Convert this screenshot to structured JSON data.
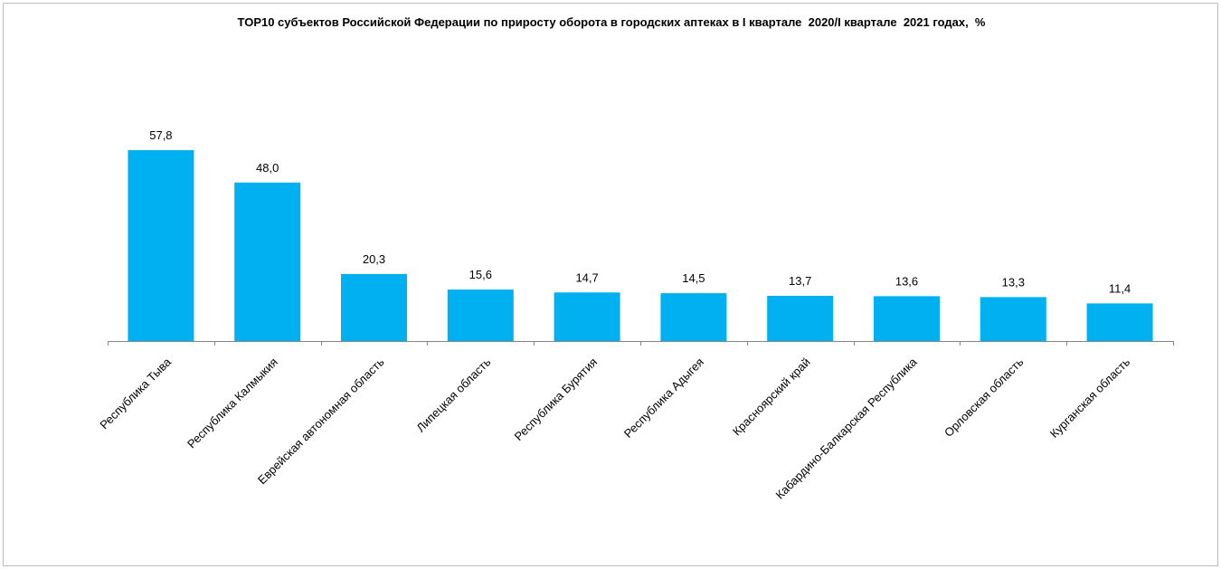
{
  "chart_data": {
    "type": "bar",
    "title": "TOP10 субъектов Российской Федерации по приросту оборота в городских аптеках в I квартале  2020/I квартале  2021 годах,  %",
    "xlabel": "",
    "ylabel": "",
    "categories": [
      "Республика Тыва",
      "Республика Калмыкия",
      "Еврейская автономная область",
      "Липецкая область",
      "Республика Бурятия",
      "Республика Адыгея",
      "Красноярский край",
      "Кабардино-Балкарская Республика",
      "Орловская область",
      "Курганская область"
    ],
    "values": [
      57.8,
      48.0,
      20.3,
      15.6,
      14.7,
      14.5,
      13.7,
      13.6,
      13.3,
      11.4
    ],
    "value_labels": [
      "57,8",
      "48,0",
      "20,3",
      "15,6",
      "14,7",
      "14,5",
      "13,7",
      "13,6",
      "13,3",
      "11,4"
    ],
    "ylim": [
      0,
      57.8
    ],
    "grid": false,
    "legend": "none",
    "bar_color": "#00b0f0"
  }
}
